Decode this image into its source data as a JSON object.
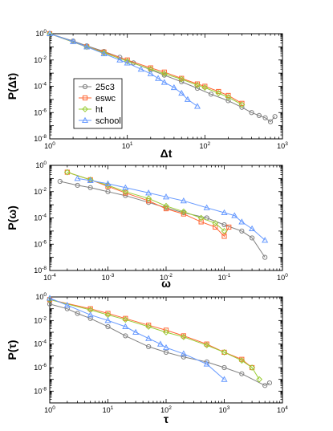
{
  "chart_data": [
    {
      "type": "scatter",
      "xlabel": "Δt",
      "ylabel": "P(Δt)",
      "xscale": "log",
      "yscale": "log",
      "xlim": [
        1,
        1000
      ],
      "ylim": [
        1e-08,
        1
      ],
      "xticks": [
        {
          "base": "10",
          "exp": "0"
        },
        {
          "base": "10",
          "exp": "1"
        },
        {
          "base": "10",
          "exp": "2"
        },
        {
          "base": "10",
          "exp": "3"
        }
      ],
      "yticks": [
        {
          "base": "10",
          "exp": "0"
        },
        {
          "base": "10",
          "exp": "-2"
        },
        {
          "base": "10",
          "exp": "-4"
        },
        {
          "base": "10",
          "exp": "-6"
        },
        {
          "base": "10",
          "exp": "-8"
        }
      ],
      "legend": {
        "placement": "lower-left"
      },
      "series": [
        {
          "name": "25c3",
          "color": "#808080",
          "marker": "circle",
          "x": [
            1,
            2,
            3,
            5,
            8,
            12,
            20,
            30,
            50,
            80,
            120,
            200,
            300,
            400,
            500,
            600,
            700,
            800
          ],
          "y": [
            1,
            0.28,
            0.12,
            0.045,
            0.016,
            0.006,
            0.0018,
            0.0007,
            0.00022,
            7e-05,
            2.5e-05,
            8e-06,
            2.5e-06,
            1e-06,
            6e-07,
            4e-07,
            2e-07,
            5e-07
          ]
        },
        {
          "name": "eswc",
          "color": "#ff6633",
          "marker": "square",
          "x": [
            1,
            3,
            5,
            10,
            20,
            30,
            50,
            80,
            100,
            150,
            200,
            300
          ],
          "y": [
            1,
            0.1,
            0.04,
            0.01,
            0.0025,
            0.0012,
            0.0004,
            0.00015,
            0.0001,
            4e-05,
            2e-05,
            5e-06
          ]
        },
        {
          "name": "ht",
          "color": "#99cc33",
          "marker": "diamond",
          "x": [
            1,
            3,
            5,
            10,
            20,
            30,
            50,
            80,
            100,
            150,
            200,
            300
          ],
          "y": [
            1,
            0.1,
            0.035,
            0.008,
            0.002,
            0.0009,
            0.00035,
            0.00012,
            8e-05,
            3e-05,
            1.5e-05,
            4e-06
          ]
        },
        {
          "name": "school",
          "color": "#6699ff",
          "marker": "triangle",
          "x": [
            1,
            2,
            3,
            5,
            8,
            10,
            15,
            20,
            25,
            30,
            40,
            50,
            60,
            80
          ],
          "y": [
            1,
            0.25,
            0.1,
            0.03,
            0.01,
            0.006,
            0.002,
            0.0009,
            0.0004,
            0.0002,
            8e-05,
            3e-05,
            1e-05,
            3e-06
          ]
        }
      ]
    },
    {
      "type": "scatter",
      "xlabel": "ω",
      "ylabel": "P(ω)",
      "xscale": "log",
      "yscale": "log",
      "xlim": [
        0.0001,
        1
      ],
      "ylim": [
        1e-08,
        1
      ],
      "xticks": [
        {
          "base": "10",
          "exp": "-4"
        },
        {
          "base": "10",
          "exp": "-3"
        },
        {
          "base": "10",
          "exp": "-2"
        },
        {
          "base": "10",
          "exp": "-1"
        },
        {
          "base": "10",
          "exp": "0"
        }
      ],
      "yticks": [
        {
          "base": "10",
          "exp": "0"
        },
        {
          "base": "10",
          "exp": "-2"
        },
        {
          "base": "10",
          "exp": "-4"
        },
        {
          "base": "10",
          "exp": "-6"
        },
        {
          "base": "10",
          "exp": "-8"
        }
      ],
      "series": [
        {
          "name": "25c3",
          "color": "#808080",
          "marker": "circle",
          "x": [
            0.00015,
            0.0003,
            0.0005,
            0.001,
            0.002,
            0.005,
            0.01,
            0.02,
            0.05,
            0.1,
            0.2,
            0.3,
            0.5
          ],
          "y": [
            0.06,
            0.03,
            0.02,
            0.01,
            0.005,
            0.0015,
            0.0006,
            0.00025,
            0.0001,
            3e-05,
            1e-05,
            3e-06,
            1e-07
          ]
        },
        {
          "name": "eswc",
          "color": "#ff6633",
          "marker": "square",
          "x": [
            0.0002,
            0.0005,
            0.001,
            0.002,
            0.005,
            0.01,
            0.02,
            0.04,
            0.07,
            0.1,
            0.12
          ],
          "y": [
            0.3,
            0.08,
            0.025,
            0.008,
            0.002,
            0.0005,
            0.0002,
            5e-05,
            2e-05,
            4e-06,
            2e-05
          ]
        },
        {
          "name": "ht",
          "color": "#99cc33",
          "marker": "diamond",
          "x": [
            0.0002,
            0.0005,
            0.001,
            0.002,
            0.005,
            0.01,
            0.02,
            0.04,
            0.07,
            0.1
          ],
          "y": [
            0.3,
            0.08,
            0.03,
            0.01,
            0.003,
            0.0008,
            0.0003,
            0.0001,
            4e-05,
            1e-05
          ]
        },
        {
          "name": "school",
          "color": "#6699ff",
          "marker": "triangle",
          "x": [
            0.0003,
            0.0005,
            0.001,
            0.002,
            0.005,
            0.01,
            0.02,
            0.05,
            0.1,
            0.15,
            0.2,
            0.3,
            0.5
          ],
          "y": [
            0.1,
            0.07,
            0.04,
            0.02,
            0.008,
            0.004,
            0.002,
            0.0006,
            0.00025,
            0.00015,
            5e-05,
            1.5e-05,
            2e-06
          ]
        }
      ]
    },
    {
      "type": "scatter",
      "xlabel": "τ",
      "ylabel": "P(τ)",
      "xscale": "log",
      "yscale": "log",
      "xlim": [
        1,
        10000
      ],
      "ylim": [
        1e-09,
        1
      ],
      "xticks": [
        {
          "base": "10",
          "exp": "0"
        },
        {
          "base": "10",
          "exp": "1"
        },
        {
          "base": "10",
          "exp": "2"
        },
        {
          "base": "10",
          "exp": "3"
        },
        {
          "base": "10",
          "exp": "4"
        }
      ],
      "yticks": [
        {
          "base": "10",
          "exp": "0"
        },
        {
          "base": "10",
          "exp": "-2"
        },
        {
          "base": "10",
          "exp": "-4"
        },
        {
          "base": "10",
          "exp": "-6"
        },
        {
          "base": "10",
          "exp": "-8"
        }
      ],
      "series": [
        {
          "name": "25c3",
          "color": "#808080",
          "marker": "circle",
          "x": [
            1,
            2,
            3,
            5,
            10,
            20,
            50,
            100,
            200,
            500,
            1000,
            2000,
            5000,
            6000
          ],
          "y": [
            0.25,
            0.1,
            0.04,
            0.015,
            0.003,
            0.0005,
            6e-05,
            2e-05,
            8e-06,
            3e-06,
            1e-06,
            3e-07,
            3e-08,
            5e-08
          ]
        },
        {
          "name": "eswc",
          "color": "#ff6633",
          "marker": "square",
          "x": [
            1,
            5,
            10,
            20,
            50,
            100,
            200,
            500,
            1000,
            2000,
            3000
          ],
          "y": [
            0.6,
            0.1,
            0.04,
            0.015,
            0.004,
            0.0015,
            0.0005,
            0.0001,
            2e-05,
            5e-06,
            1e-06
          ]
        },
        {
          "name": "ht",
          "color": "#99cc33",
          "marker": "diamond",
          "x": [
            1,
            5,
            10,
            20,
            50,
            100,
            200,
            500,
            1000,
            2000,
            3000,
            4000
          ],
          "y": [
            0.6,
            0.08,
            0.03,
            0.012,
            0.003,
            0.001,
            0.0004,
            8e-05,
            2e-05,
            4e-06,
            1e-06,
            1e-07
          ]
        },
        {
          "name": "school",
          "color": "#6699ff",
          "marker": "triangle",
          "x": [
            1,
            2,
            5,
            10,
            20,
            30,
            50,
            80,
            100,
            200,
            500,
            1000
          ],
          "y": [
            0.8,
            0.2,
            0.03,
            0.01,
            0.003,
            0.001,
            0.0003,
            0.0001,
            5e-05,
            1.5e-05,
            2e-06,
            1e-07
          ]
        }
      ]
    }
  ]
}
